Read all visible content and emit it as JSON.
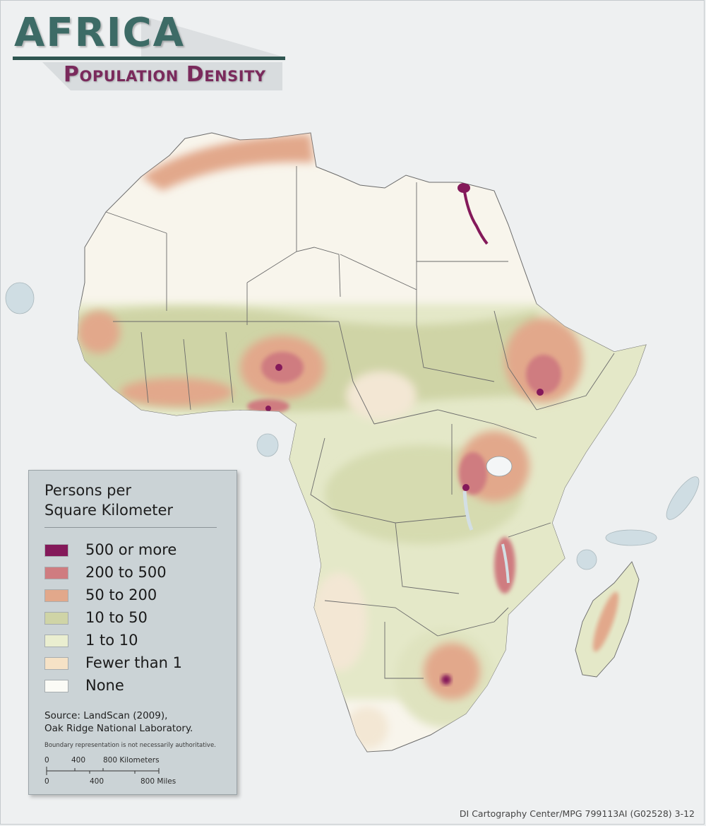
{
  "title": {
    "main": "AFRICA",
    "subtitle": "Population Density"
  },
  "legend": {
    "title_line1": "Persons per",
    "title_line2": "Square Kilometer",
    "items": [
      {
        "label": "500 or more",
        "color": "#84195a"
      },
      {
        "label": "200 to 500",
        "color": "#cf7c80"
      },
      {
        "label": "50 to 200",
        "color": "#e2a88b"
      },
      {
        "label": "10 to 50",
        "color": "#cfd4a6"
      },
      {
        "label": "1 to 10",
        "color": "#eaeed0"
      },
      {
        "label": "Fewer than 1",
        "color": "#f6e2c6"
      },
      {
        "label": "None",
        "color": "#fbfbf6"
      }
    ],
    "source_line1": "Source: LandScan (2009),",
    "source_line2": "Oak Ridge National Laboratory.",
    "note": "Boundary representation is not necessarily authoritative."
  },
  "scale": {
    "km_label_0": "0",
    "km_label_400": "400",
    "km_label_800": "800 Kilometers",
    "mi_label_0": "0",
    "mi_label_400": "400",
    "mi_label_800": "800 Miles"
  },
  "credit": "DI Cartography Center/MPG 799113AI (G02528) 3-12",
  "colors": {
    "background": "#eef0f1",
    "land_empty": "#f8f5ec",
    "land_sparse": "#f3e7d4",
    "land_low": "#e4e8c8",
    "land_medium": "#cfd4a6",
    "land_high": "#e2a88b",
    "land_very_high": "#cf7c80",
    "land_max": "#84195a",
    "water": "#cfdde3",
    "border": "#5a5a5a",
    "title_teal": "#3d6b66",
    "title_plum": "#7a2a5c"
  }
}
